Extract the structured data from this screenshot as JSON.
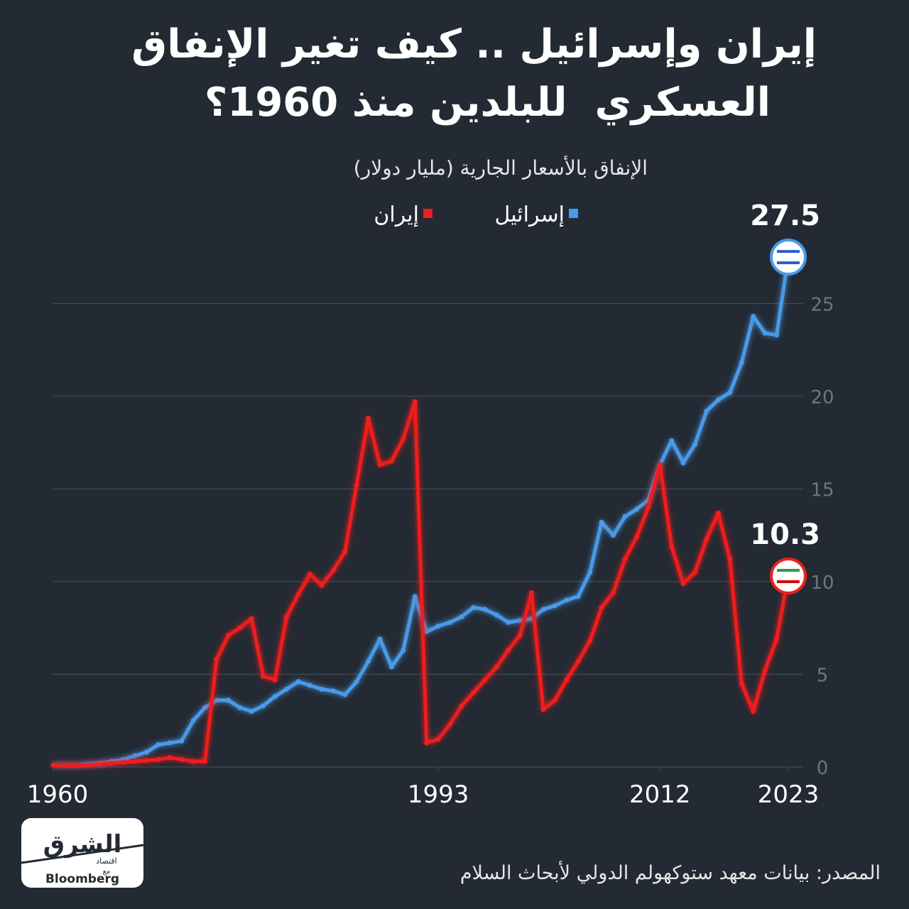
{
  "chart_data": {
    "type": "line",
    "title": [
      "إيران وإسرائيل .. كيف تغير الإنفاق",
      "العسكري  للبلدين منذ 1960؟"
    ],
    "subtitle": "الإنفاق بالأسعار الجارية (مليار دولار)",
    "source": "المصدر: بيانات معهد ستوكهولم الدولي لأبحاث السلام",
    "logo": {
      "brand": "الشرق",
      "sub": "اقتصاد",
      "with": "مع",
      "partner": "Bloomberg"
    },
    "x": [
      1960,
      1961,
      1962,
      1963,
      1964,
      1965,
      1966,
      1967,
      1968,
      1969,
      1970,
      1971,
      1972,
      1973,
      1974,
      1975,
      1976,
      1977,
      1978,
      1979,
      1980,
      1981,
      1982,
      1983,
      1984,
      1985,
      1986,
      1987,
      1988,
      1989,
      1990,
      1991,
      1992,
      1993,
      1994,
      1995,
      1996,
      1997,
      1998,
      1999,
      2000,
      2001,
      2002,
      2003,
      2004,
      2005,
      2006,
      2007,
      2008,
      2009,
      2010,
      2011,
      2012,
      2013,
      2014,
      2015,
      2016,
      2017,
      2018,
      2019,
      2020,
      2021,
      2022,
      2023
    ],
    "xlim": [
      1960,
      2023
    ],
    "xticks": [
      1960,
      1993,
      2012,
      2023
    ],
    "ylim": [
      0,
      28
    ],
    "yticks": [
      0,
      5,
      10,
      15,
      20,
      25
    ],
    "grid": true,
    "series": [
      {
        "name": "إسرائيل",
        "color": "#4a9ae8",
        "values": [
          0.1,
          0.1,
          0.1,
          0.15,
          0.2,
          0.3,
          0.4,
          0.6,
          0.8,
          1.2,
          1.3,
          1.4,
          2.5,
          3.2,
          3.6,
          3.6,
          3.2,
          3.0,
          3.3,
          3.8,
          4.2,
          4.6,
          4.4,
          4.2,
          4.1,
          3.9,
          4.6,
          5.7,
          6.9,
          5.4,
          6.3,
          9.2,
          7.3,
          7.6,
          7.8,
          8.1,
          8.6,
          8.5,
          8.2,
          7.8,
          7.9,
          8.0,
          8.5,
          8.7,
          9.0,
          9.2,
          10.5,
          13.2,
          12.5,
          13.5,
          13.9,
          14.4,
          16.3,
          17.6,
          16.4,
          17.4,
          19.2,
          19.8,
          20.2,
          21.8,
          24.3,
          23.4,
          23.3,
          27.5
        ]
      },
      {
        "name": "إيران",
        "color": "#f01e1e",
        "values": [
          0.1,
          0.1,
          0.1,
          0.1,
          0.15,
          0.2,
          0.25,
          0.3,
          0.35,
          0.4,
          0.5,
          0.4,
          0.3,
          0.3,
          5.8,
          7.1,
          7.5,
          8.0,
          4.9,
          4.7,
          8.1,
          9.3,
          10.4,
          9.8,
          10.6,
          11.6,
          15.2,
          18.8,
          16.3,
          16.5,
          17.7,
          19.7,
          1.3,
          1.5,
          2.3,
          3.3,
          4.0,
          4.7,
          5.4,
          6.3,
          7.1,
          9.4,
          3.1,
          3.6,
          4.7,
          5.7,
          6.8,
          8.6,
          9.4,
          11.2,
          12.4,
          14.0,
          16.3,
          11.9,
          9.9,
          10.5,
          12.3,
          13.7,
          11.2,
          4.5,
          3.0,
          5.2,
          6.9,
          10.3
        ]
      }
    ]
  }
}
